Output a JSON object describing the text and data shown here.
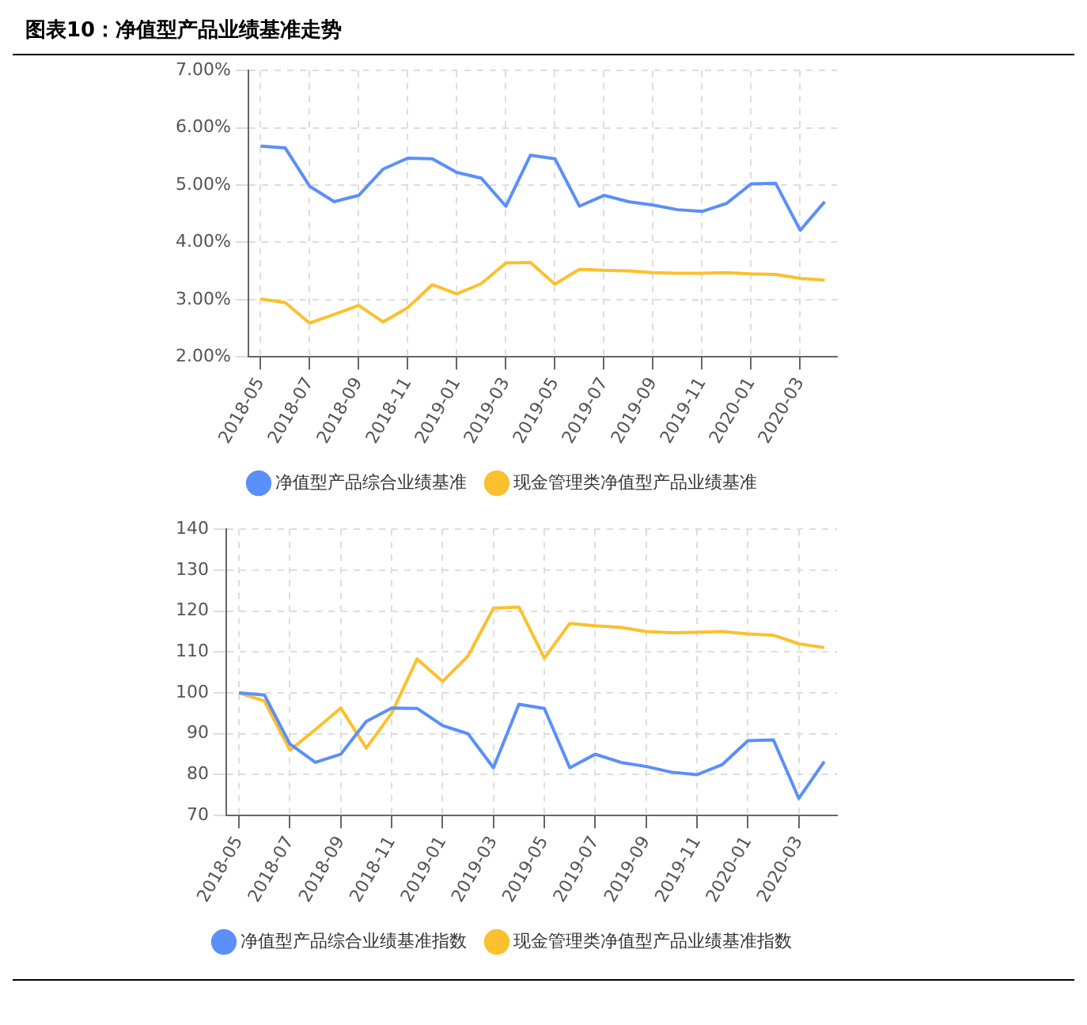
{
  "chart_data": [
    {
      "type": "line",
      "title": "图表10：净值型产品业绩基准走势",
      "categories": [
        "2018-05",
        null,
        "2018-07",
        null,
        "2018-09",
        null,
        "2018-11",
        null,
        "2019-01",
        null,
        "2019-03",
        null,
        "2019-05",
        null,
        "2019-07",
        null,
        "2019-09",
        null,
        "2019-11",
        null,
        "2020-01",
        null,
        "2020-03",
        null
      ],
      "series": [
        {
          "name": "净值型产品综合业绩基准",
          "color": "#5b8ff9",
          "values": [
            5.68,
            5.65,
            4.98,
            4.71,
            4.82,
            5.28,
            5.47,
            5.46,
            5.22,
            5.12,
            4.63,
            5.52,
            5.46,
            4.63,
            4.82,
            4.71,
            4.65,
            4.57,
            4.54,
            4.68,
            5.02,
            5.03,
            4.21,
            4.71
          ]
        },
        {
          "name": "现金管理类净值型产品业绩基准",
          "color": "#fcc02e",
          "values": [
            3.01,
            2.95,
            2.59,
            2.74,
            2.9,
            2.61,
            2.86,
            3.26,
            3.1,
            3.28,
            3.64,
            3.65,
            3.27,
            3.53,
            3.51,
            3.5,
            3.47,
            3.46,
            3.46,
            3.47,
            3.45,
            3.44,
            3.37,
            3.34
          ]
        }
      ],
      "ylim": [
        2,
        7
      ],
      "yticks": [
        {
          "value": 2,
          "label": "2.00%"
        },
        {
          "value": 3,
          "label": "3.00%"
        },
        {
          "value": 4,
          "label": "4.00%"
        },
        {
          "value": 5,
          "label": "5.00%"
        },
        {
          "value": 6,
          "label": "6.00%"
        },
        {
          "value": 7,
          "label": "7.00%"
        }
      ],
      "grid": true,
      "legend": "bottom",
      "marker": "none"
    },
    {
      "type": "line",
      "categories": [
        "2018-05",
        null,
        "2018-07",
        null,
        "2018-09",
        null,
        "2018-11",
        null,
        "2019-01",
        null,
        "2019-03",
        null,
        "2019-05",
        null,
        "2019-07",
        null,
        "2019-09",
        null,
        "2019-11",
        null,
        "2020-01",
        null,
        "2020-03",
        null
      ],
      "series": [
        {
          "name": "净值型产品综合业绩基准指数",
          "color": "#5b8ff9",
          "values": [
            100,
            99.5,
            87.5,
            83,
            85,
            93,
            96.3,
            96.2,
            92,
            90,
            81.7,
            97.2,
            96.2,
            81.7,
            85,
            83,
            82,
            80.6,
            80,
            82.5,
            88.3,
            88.5,
            74.2,
            83.2
          ]
        },
        {
          "name": "现金管理类净值型产品业绩基准指数",
          "color": "#fcc02e",
          "values": [
            100,
            98,
            86,
            91,
            96.3,
            86.5,
            95,
            108.3,
            102.8,
            109,
            120.7,
            121,
            108.5,
            117,
            116.4,
            116,
            115,
            114.7,
            114.8,
            115,
            114.4,
            114.1,
            112,
            111.1
          ]
        }
      ],
      "ylim": [
        70,
        140
      ],
      "yticks": [
        70,
        80,
        90,
        100,
        110,
        120,
        130,
        140
      ],
      "grid": true,
      "legend": "bottom",
      "marker": "none"
    }
  ]
}
